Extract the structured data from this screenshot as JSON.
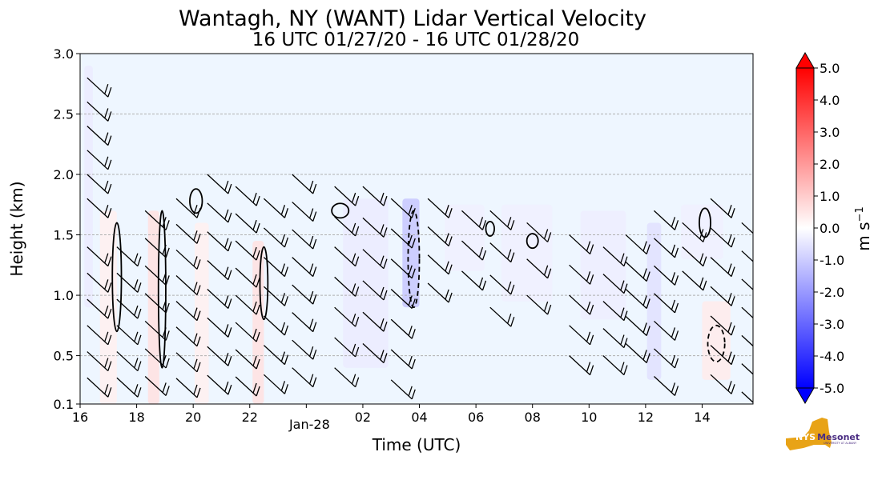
{
  "chart_data": {
    "type": "heatmap",
    "title": "Wantagh, NY (WANT) Lidar Vertical Velocity",
    "subtitle": "16 UTC 01/27/20 - 16 UTC 01/28/20",
    "xlabel": "Time (UTC)",
    "ylabel": "Height (km)",
    "xlim": [
      16,
      39.8
    ],
    "ylim": [
      0.1,
      3.0
    ],
    "grid": "horizontal dashed",
    "x_ticks": [
      {
        "value": 16,
        "label": "16"
      },
      {
        "value": 18,
        "label": "18"
      },
      {
        "value": 20,
        "label": "20"
      },
      {
        "value": 22,
        "label": "22"
      },
      {
        "value": 24,
        "label": "Jan-28"
      },
      {
        "value": 26,
        "label": "02"
      },
      {
        "value": 28,
        "label": "04"
      },
      {
        "value": 30,
        "label": "06"
      },
      {
        "value": 32,
        "label": "08"
      },
      {
        "value": 34,
        "label": "10"
      },
      {
        "value": 36,
        "label": "12"
      },
      {
        "value": 38,
        "label": "14"
      }
    ],
    "y_ticks": [
      {
        "value": 0.1,
        "label": "0.1"
      },
      {
        "value": 0.5,
        "label": "0.5"
      },
      {
        "value": 1.0,
        "label": "1.0"
      },
      {
        "value": 1.5,
        "label": "1.5"
      },
      {
        "value": 2.0,
        "label": "2.0"
      },
      {
        "value": 2.5,
        "label": "2.5"
      },
      {
        "value": 3.0,
        "label": "3.0"
      }
    ],
    "colorbar": {
      "label": "m s",
      "label_exponent": "−1",
      "min": -5.0,
      "max": 5.0,
      "ticks": [
        {
          "value": 5.0,
          "label": "5.0"
        },
        {
          "value": 4.0,
          "label": "4.0"
        },
        {
          "value": 3.0,
          "label": "3.0"
        },
        {
          "value": 2.0,
          "label": "2.0"
        },
        {
          "value": 1.0,
          "label": "1.0"
        },
        {
          "value": 0.0,
          "label": "0.0"
        },
        {
          "value": -1.0,
          "label": "-1.0"
        },
        {
          "value": -2.0,
          "label": "-2.0"
        },
        {
          "value": -3.0,
          "label": "-3.0"
        },
        {
          "value": -4.0,
          "label": "-4.0"
        },
        {
          "value": -5.0,
          "label": "-5.0"
        }
      ],
      "colors": {
        "min": "#0000ff",
        "mid": "#ffffff",
        "max": "#ff0000"
      }
    },
    "background_color": "#eef6ff",
    "velocity_patches": [
      {
        "x": 17.0,
        "y0": 0.1,
        "y1": 1.7,
        "w": 0.6,
        "v": 0.3
      },
      {
        "x": 18.6,
        "y0": 0.1,
        "y1": 1.7,
        "w": 0.4,
        "v": 0.6
      },
      {
        "x": 20.3,
        "y0": 0.1,
        "y1": 1.6,
        "w": 0.5,
        "v": 0.3
      },
      {
        "x": 22.3,
        "y0": 0.1,
        "y1": 1.45,
        "w": 0.4,
        "v": 0.6
      },
      {
        "x": 16.3,
        "y0": 0.9,
        "y1": 2.9,
        "w": 0.3,
        "v": -0.4
      },
      {
        "x": 26.1,
        "y0": 0.4,
        "y1": 1.8,
        "w": 1.6,
        "v": -0.4
      },
      {
        "x": 27.7,
        "y0": 0.9,
        "y1": 1.8,
        "w": 0.6,
        "v": -1.1
      },
      {
        "x": 29.6,
        "y0": 1.2,
        "y1": 1.75,
        "w": 1.4,
        "v": -0.3
      },
      {
        "x": 31.8,
        "y0": 0.95,
        "y1": 1.75,
        "w": 1.8,
        "v": -0.3
      },
      {
        "x": 34.5,
        "y0": 0.8,
        "y1": 1.7,
        "w": 1.6,
        "v": -0.35
      },
      {
        "x": 36.3,
        "y0": 0.3,
        "y1": 1.6,
        "w": 0.5,
        "v": -0.6
      },
      {
        "x": 38.0,
        "y0": 1.3,
        "y1": 1.75,
        "w": 1.5,
        "v": -0.3
      },
      {
        "x": 38.5,
        "y0": 0.3,
        "y1": 0.95,
        "w": 1.0,
        "v": 0.4
      }
    ],
    "contours": [
      {
        "xc": 17.3,
        "yc": 1.15,
        "rx": 0.16,
        "ry": 0.45,
        "style": "solid"
      },
      {
        "xc": 18.9,
        "yc": 1.05,
        "rx": 0.13,
        "ry": 0.65,
        "style": "solid"
      },
      {
        "xc": 20.1,
        "yc": 1.78,
        "rx": 0.22,
        "ry": 0.1,
        "style": "solid"
      },
      {
        "xc": 22.5,
        "yc": 1.1,
        "rx": 0.14,
        "ry": 0.3,
        "style": "solid"
      },
      {
        "xc": 27.8,
        "yc": 1.3,
        "rx": 0.2,
        "ry": 0.4,
        "style": "dashed"
      },
      {
        "xc": 25.2,
        "yc": 1.7,
        "rx": 0.3,
        "ry": 0.06,
        "style": "solid"
      },
      {
        "xc": 30.5,
        "yc": 1.55,
        "rx": 0.15,
        "ry": 0.06,
        "style": "solid"
      },
      {
        "xc": 32.0,
        "yc": 1.45,
        "rx": 0.2,
        "ry": 0.06,
        "style": "solid"
      },
      {
        "xc": 38.1,
        "yc": 1.6,
        "rx": 0.2,
        "ry": 0.12,
        "style": "solid"
      },
      {
        "xc": 38.5,
        "yc": 0.6,
        "rx": 0.3,
        "ry": 0.15,
        "style": "dashed"
      }
    ],
    "wind_barb_columns": [
      {
        "x": 16.25,
        "y0": 1.8,
        "y1": 2.8,
        "n": 6
      },
      {
        "x": 16.25,
        "y0": 0.1,
        "y1": 1.4,
        "n": 7
      },
      {
        "x": 17.3,
        "y0": 0.1,
        "y1": 1.4,
        "n": 7
      },
      {
        "x": 18.3,
        "y0": 0.1,
        "y1": 1.7,
        "n": 8
      },
      {
        "x": 19.4,
        "y0": 0.1,
        "y1": 1.8,
        "n": 9
      },
      {
        "x": 20.5,
        "y0": 0.1,
        "y1": 2.0,
        "n": 9
      },
      {
        "x": 21.5,
        "y0": 0.1,
        "y1": 1.9,
        "n": 9
      },
      {
        "x": 22.5,
        "y0": 0.1,
        "y1": 1.8,
        "n": 8
      },
      {
        "x": 23.5,
        "y0": 0.4,
        "y1": 2.0,
        "n": 8
      },
      {
        "x": 25.0,
        "y0": 0.4,
        "y1": 1.9,
        "n": 7
      },
      {
        "x": 26.0,
        "y0": 0.6,
        "y1": 1.9,
        "n": 6
      },
      {
        "x": 27.0,
        "y0": 0.3,
        "y1": 1.8,
        "n": 7
      },
      {
        "x": 28.3,
        "y0": 1.1,
        "y1": 1.8,
        "n": 4
      },
      {
        "x": 29.5,
        "y0": 1.2,
        "y1": 1.7,
        "n": 3
      },
      {
        "x": 30.5,
        "y0": 0.9,
        "y1": 1.7,
        "n": 4
      },
      {
        "x": 31.8,
        "y0": 1.0,
        "y1": 1.6,
        "n": 3
      },
      {
        "x": 33.3,
        "y0": 0.5,
        "y1": 1.5,
        "n": 5
      },
      {
        "x": 34.5,
        "y0": 0.5,
        "y1": 1.4,
        "n": 5
      },
      {
        "x": 35.3,
        "y0": 0.6,
        "y1": 1.5,
        "n": 5
      },
      {
        "x": 36.3,
        "y0": 0.1,
        "y1": 1.7,
        "n": 8
      },
      {
        "x": 37.3,
        "y0": 1.2,
        "y1": 1.6,
        "n": 3
      },
      {
        "x": 38.3,
        "y0": 0.1,
        "y1": 1.8,
        "n": 8
      },
      {
        "x": 39.4,
        "y0": 0.2,
        "y1": 1.6,
        "n": 7
      }
    ]
  },
  "logo": {
    "text": "NYS Mesonet",
    "sub": "UNIVERSITY AT ALBANY",
    "color_gold": "#e8a317",
    "color_purple": "#4b2e83"
  }
}
